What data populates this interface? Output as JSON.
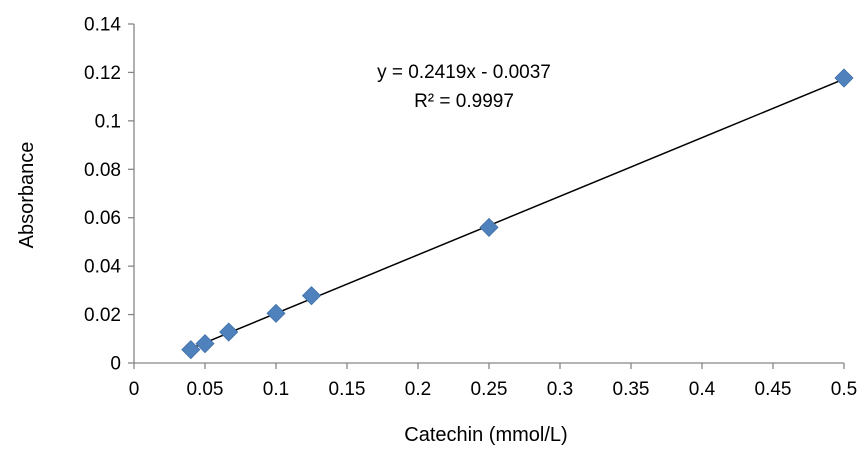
{
  "chart_data": {
    "type": "scatter",
    "title": "",
    "xlabel": "Catechin (mmol/L)",
    "ylabel": "Absorbance",
    "xlim": [
      0,
      0.5
    ],
    "ylim": [
      0,
      0.14
    ],
    "x_ticks": [
      "0",
      "0.05",
      "0.1",
      "0.15",
      "0.2",
      "0.25",
      "0.3",
      "0.35",
      "0.4",
      "0.45",
      "0.5"
    ],
    "y_ticks": [
      "0",
      "0.02",
      "0.04",
      "0.06",
      "0.08",
      "0.1",
      "0.12",
      "0.14"
    ],
    "grid": false,
    "marker": "diamond",
    "series": [
      {
        "color": "#4f81bd",
        "points": [
          {
            "x": 0.04,
            "y": 0.0055
          },
          {
            "x": 0.05,
            "y": 0.008
          },
          {
            "x": 0.0667,
            "y": 0.0128
          },
          {
            "x": 0.1,
            "y": 0.0205
          },
          {
            "x": 0.125,
            "y": 0.0278
          },
          {
            "x": 0.25,
            "y": 0.056
          },
          {
            "x": 0.5,
            "y": 0.1177
          }
        ]
      }
    ],
    "trendline": {
      "type": "linear",
      "slope": 0.2419,
      "intercept": -0.0037,
      "x_range": [
        0.04,
        0.5
      ],
      "color": "#000000",
      "equation_label": "y = 0.2419x - 0.0037",
      "r2_label": "R² = 0.9997"
    }
  }
}
